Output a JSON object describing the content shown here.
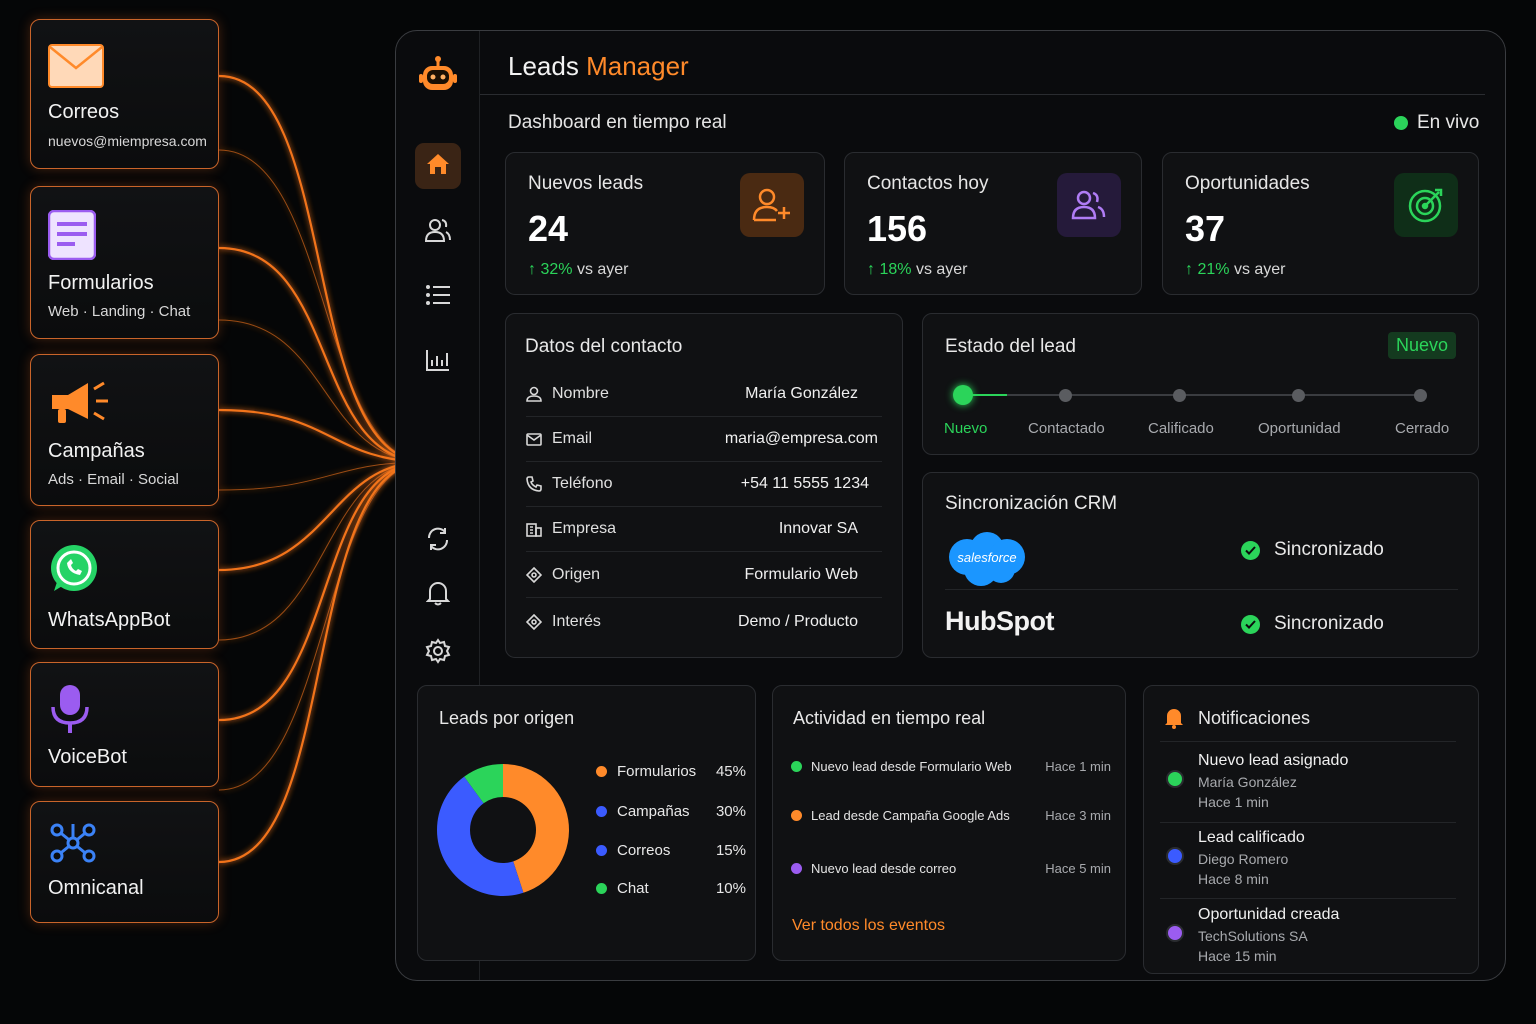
{
  "sources": [
    {
      "title": "Correos",
      "subtitle": "nuevos@miempresa.com",
      "icon": "envelope-icon"
    },
    {
      "title": "Formularios",
      "subtitle": "Web · Landing · Chat",
      "icon": "form-icon"
    },
    {
      "title": "Campañas",
      "subtitle": "Ads · Email · Social",
      "icon": "megaphone-icon"
    },
    {
      "title": "WhatsAppBot",
      "subtitle": "",
      "icon": "whatsapp-icon"
    },
    {
      "title": "VoiceBot",
      "subtitle": "",
      "icon": "microphone-icon"
    },
    {
      "title": "Omnicanal",
      "subtitle": "",
      "icon": "network-icon"
    }
  ],
  "app": {
    "title_prefix": "Leads",
    "title_accent": "Manager",
    "subtitle": "Dashboard en tiempo real",
    "live_label": "En vivo"
  },
  "colors": {
    "accent": "#ff8a2a",
    "green": "#2bd45a",
    "blue": "#3b5bff",
    "purple": "#9b5cf0"
  },
  "stats": [
    {
      "title": "Nuevos leads",
      "value": "24",
      "delta": "32%",
      "delta_suffix": "vs ayer",
      "icon": "add-user-icon"
    },
    {
      "title": "Contactos hoy",
      "value": "156",
      "delta": "18%",
      "delta_suffix": "vs ayer",
      "icon": "users-icon"
    },
    {
      "title": "Oportunidades",
      "value": "37",
      "delta": "21%",
      "delta_suffix": "vs ayer",
      "icon": "target-icon"
    }
  ],
  "contact": {
    "title": "Datos del contacto",
    "rows": [
      {
        "label": "Nombre",
        "value": "María González",
        "icon": "user-icon"
      },
      {
        "label": "Email",
        "value": "maria@empresa.com",
        "icon": "mail-icon"
      },
      {
        "label": "Teléfono",
        "value": "+54 11 5555 1234",
        "icon": "phone-icon"
      },
      {
        "label": "Empresa",
        "value": "Innovar SA",
        "icon": "building-icon"
      },
      {
        "label": "Origen",
        "value": "Formulario Web",
        "icon": "diamond-icon"
      },
      {
        "label": "Interés",
        "value": "Demo / Producto",
        "icon": "diamond-icon"
      }
    ]
  },
  "status": {
    "title": "Estado del lead",
    "badge": "Nuevo",
    "steps": [
      "Nuevo",
      "Contactado",
      "Calificado",
      "Oportunidad",
      "Cerrado"
    ],
    "current_step": 0
  },
  "crm": {
    "title": "Sincronización CRM",
    "items": [
      {
        "name": "salesforce",
        "status": "Sincronizado"
      },
      {
        "name": "HubSpot",
        "status": "Sincronizado"
      }
    ]
  },
  "origin": {
    "title": "Leads por origen",
    "legend": [
      {
        "name": "Formularios",
        "value": "45%",
        "color": "#ff8a2a"
      },
      {
        "name": "Campañas",
        "value": "30%",
        "color": "#3b5bff"
      },
      {
        "name": "Correos",
        "value": "15%",
        "color": "#3b5bff"
      },
      {
        "name": "Chat",
        "value": "10%",
        "color": "#2bd45a"
      }
    ]
  },
  "chart_data": {
    "type": "pie",
    "categories": [
      "Formularios",
      "Campañas",
      "Correos",
      "Chat"
    ],
    "values": [
      45,
      30,
      15,
      10
    ],
    "title": "Leads por origen"
  },
  "activity": {
    "title": "Actividad en tiempo real",
    "items": [
      {
        "text": "Nuevo lead desde Formulario Web",
        "time": "Hace 1 min",
        "color": "#2bd45a"
      },
      {
        "text": "Lead desde Campaña Google Ads",
        "time": "Hace 3 min",
        "color": "#ff8a2a"
      },
      {
        "text": "Nuevo lead desde correo",
        "time": "Hace 5 min",
        "color": "#9b5cf0"
      }
    ],
    "link": "Ver todos los eventos"
  },
  "notifications": {
    "title": "Notificaciones",
    "items": [
      {
        "title": "Nuevo lead asignado",
        "name": "María González",
        "time": "Hace 1 min",
        "color": "#2bd45a"
      },
      {
        "title": "Lead calificado",
        "name": "Diego Romero",
        "time": "Hace 8 min",
        "color": "#3b5bff"
      },
      {
        "title": "Oportunidad creada",
        "name": "TechSolutions SA",
        "time": "Hace 15 min",
        "color": "#9b5cf0"
      }
    ]
  }
}
